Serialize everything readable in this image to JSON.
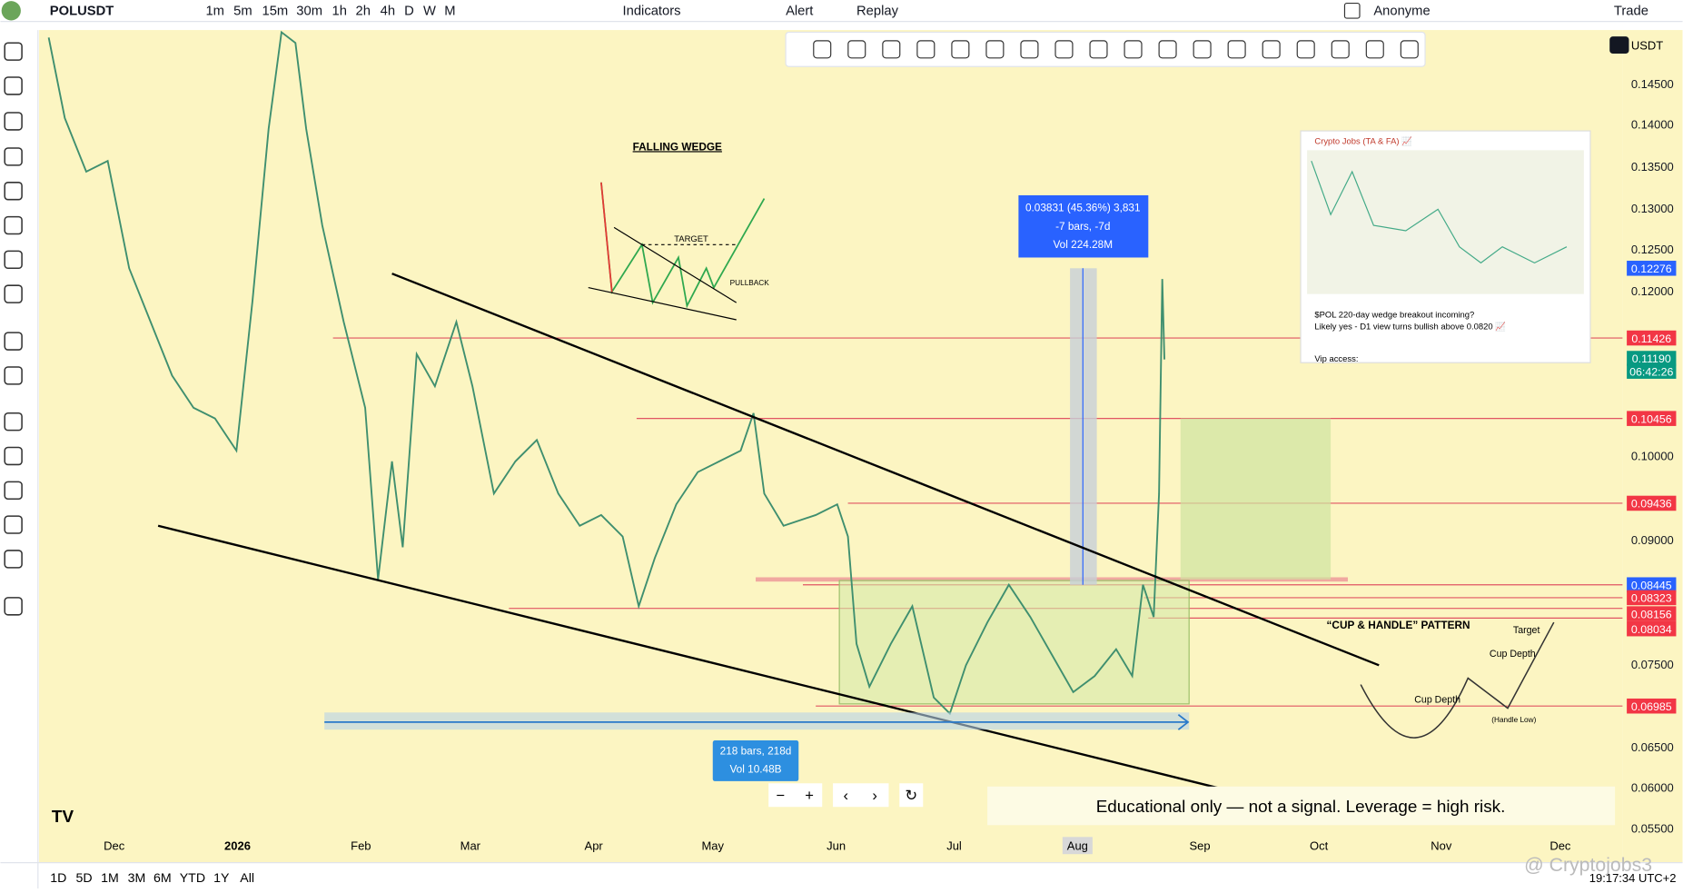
{
  "header": {
    "symbol": "POLUSDT",
    "intervals": [
      "1m",
      "5m",
      "15m",
      "30m",
      "1h",
      "2h",
      "4h",
      "D",
      "W",
      "M"
    ],
    "indicators": "Indicators",
    "alert": "Alert",
    "replay": "Replay",
    "account": "Anonyme",
    "trade": "Trade",
    "currency": "USDT"
  },
  "price_axis": [
    "0.14500",
    "0.14000",
    "0.13500",
    "0.13000",
    "0.12500",
    "0.12000",
    "0.10000",
    "0.09000",
    "0.07500",
    "0.06500",
    "0.06000",
    "0.05500"
  ],
  "price_labels": [
    {
      "text": "0.12276",
      "kind": "blue"
    },
    {
      "text": "0.11426",
      "kind": "red"
    },
    {
      "text": "0.11190",
      "kind": "green"
    },
    {
      "text": "06:42:26",
      "kind": "green"
    },
    {
      "text": "0.10456",
      "kind": "red"
    },
    {
      "text": "0.09436",
      "kind": "red"
    },
    {
      "text": "0.08445",
      "kind": "blue"
    },
    {
      "text": "0.08323",
      "kind": "red"
    },
    {
      "text": "0.08156",
      "kind": "red"
    },
    {
      "text": "0.08034",
      "kind": "red"
    },
    {
      "text": "0.06985",
      "kind": "red"
    }
  ],
  "time_axis": [
    "Dec",
    "2026",
    "Feb",
    "Mar",
    "Apr",
    "May",
    "Jun",
    "Jul",
    "Aug",
    "Sep",
    "Oct",
    "Nov",
    "Dec"
  ],
  "annotations": {
    "falling_wedge": "FALLING WEDGE",
    "target": "TARGET",
    "pullback": "PULLBACK",
    "measure_up": [
      "0.03831 (45.36%) 3,831",
      "-7 bars, -7d",
      "Vol 224.28M"
    ],
    "measure_range": [
      "218 bars, 218d",
      "Vol 10.48B"
    ],
    "cup_handle": "“CUP & HANDLE” PATTERN",
    "cup_depth_1": "Cup Depth",
    "cup_depth_2": "Cup Depth",
    "cup_target": "Target",
    "handle_low": "(Handle Low)",
    "disclaimer": "Educational only — not a signal. Leverage  = high risk.",
    "watermark": "@ Cryptojobs3"
  },
  "inset": {
    "title": "Crypto Jobs (TA & FA) 📈",
    "line1": "$POL 220-day wedge breakout incoming?",
    "line2": "Likely yes - D1 view turns bullish above 0.0820 📈",
    "line3": "Vip access:"
  },
  "footer": {
    "ranges": [
      "1D",
      "5D",
      "1M",
      "3M",
      "6M",
      "YTD",
      "1Y",
      "All"
    ],
    "clock": "19:17:34 UTC+2"
  }
}
